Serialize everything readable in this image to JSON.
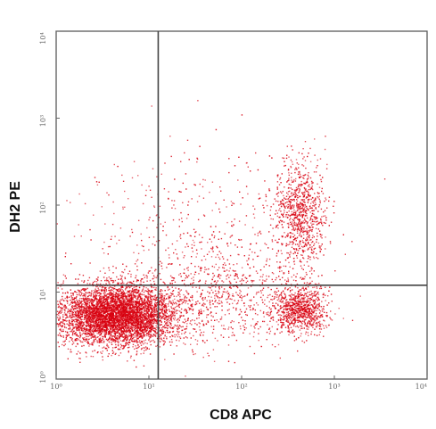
{
  "chart_data": {
    "type": "scatter",
    "title": "",
    "xlabel": "CD8 APC",
    "ylabel": "DH2 PE",
    "x_scale": "log",
    "y_scale": "log",
    "xlim": [
      1,
      10000
    ],
    "ylim": [
      1,
      10000
    ],
    "x_ticks": [
      {
        "value": 1,
        "label": "10⁰"
      },
      {
        "value": 10,
        "label": "10¹"
      },
      {
        "value": 100,
        "label": "10²"
      },
      {
        "value": 1000,
        "label": "10³"
      },
      {
        "value": 10000,
        "label": "10⁴"
      }
    ],
    "y_ticks": [
      {
        "value": 1,
        "label": "10⁰"
      },
      {
        "value": 10,
        "label": "10¹"
      },
      {
        "value": 100,
        "label": "10²"
      },
      {
        "value": 1000,
        "label": "10³"
      },
      {
        "value": 10000,
        "label": "10⁴"
      }
    ],
    "quadrant_gates": {
      "x": 12.6,
      "y": 12.0
    },
    "grid": false,
    "legend": "none",
    "point_color": "#d8000f",
    "populations": [
      {
        "x_center": 4.5,
        "y_center": 5.5,
        "x_spread_decades": 0.32,
        "y_spread_decades": 0.17,
        "relative_size": 5200
      },
      {
        "x_center": 420,
        "y_center": 6.5,
        "x_spread_decades": 0.14,
        "y_spread_decades": 0.14,
        "relative_size": 900
      },
      {
        "x_center": 420,
        "y_center": 80,
        "x_spread_decades": 0.13,
        "y_spread_decades": 0.3,
        "relative_size": 900
      },
      {
        "x_center": 60,
        "y_center": 9,
        "x_spread_decades": 0.45,
        "y_spread_decades": 0.3,
        "relative_size": 700
      },
      {
        "x_center": 30,
        "y_center": 50,
        "x_spread_decades": 0.7,
        "y_spread_decades": 0.5,
        "relative_size": 400
      }
    ]
  }
}
